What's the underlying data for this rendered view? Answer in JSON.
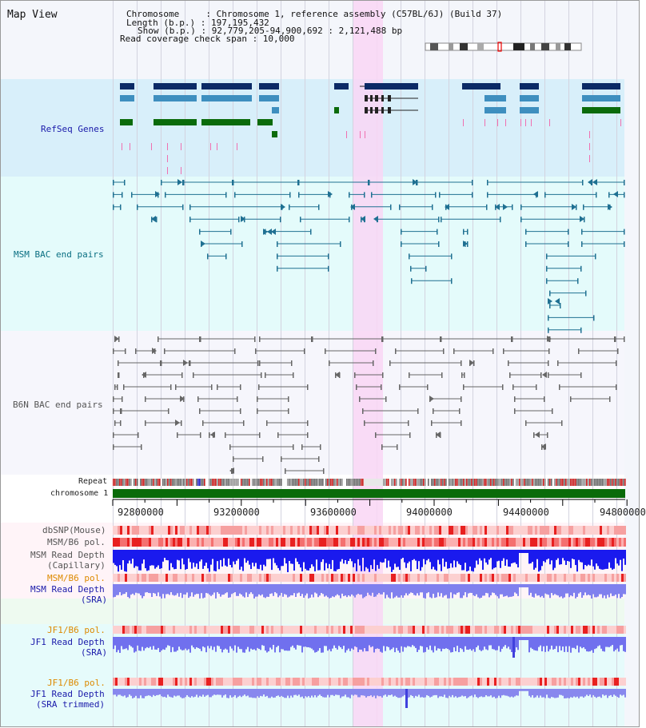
{
  "view": {
    "title": "Map View",
    "header": {
      "chromosome_line": "Chromosome     : Chromosome 1, reference assembly (C57BL/6J) (Build 37)",
      "length_line": "Length (b.p.) : 197,195,432",
      "show_line": "Show (b.p.) : 92,779,205-94,900,692 : 2,121,488 bp",
      "coverage_line": "Read coverage check span : 10,000"
    }
  },
  "tracks": {
    "refseq": "RefSeq Genes",
    "msm_bac": "MSM BAC end pairs",
    "b6n_bac": "B6N BAC end pairs",
    "repeat": "Repeat",
    "chromosome": "chromosome 1",
    "dbsnp": "dbSNP(Mouse)",
    "msm_b6_pol_1": "MSM/B6 pol.",
    "msm_depth_cap_1": "MSM Read Depth",
    "msm_depth_cap_2": "(Capillary)",
    "msm_b6_pol_2": "MSM/B6 pol.",
    "msm_depth_sra_1": "MSM Read Depth",
    "msm_depth_sra_2": "(SRA)",
    "jf1_pol_1": "JF1/B6 pol.",
    "jf1_depth_sra_1": "JF1 Read Depth",
    "jf1_depth_sra_2": "(SRA)",
    "jf1_pol_2": "JF1/B6 pol.",
    "jf1_depth_trim_1": "JF1 Read Depth",
    "jf1_depth_trim_2": "(SRA trimmed)"
  },
  "ruler": {
    "ticks": [
      "92800000",
      "93200000",
      "93600000",
      "94000000",
      "94400000",
      "94800000"
    ]
  },
  "colors": {
    "refseq_dark": "#0b2a66",
    "refseq_mid": "#3e8fbf",
    "refseq_light": "#2f9fbf",
    "refseq_green": "#0b6b0b",
    "pink_mark": "#f070b0",
    "msm_line": "#1f7092",
    "b6n_line": "#666666",
    "chromosome": "#0a6b0a",
    "highlight": "#f9d6f4"
  }
}
